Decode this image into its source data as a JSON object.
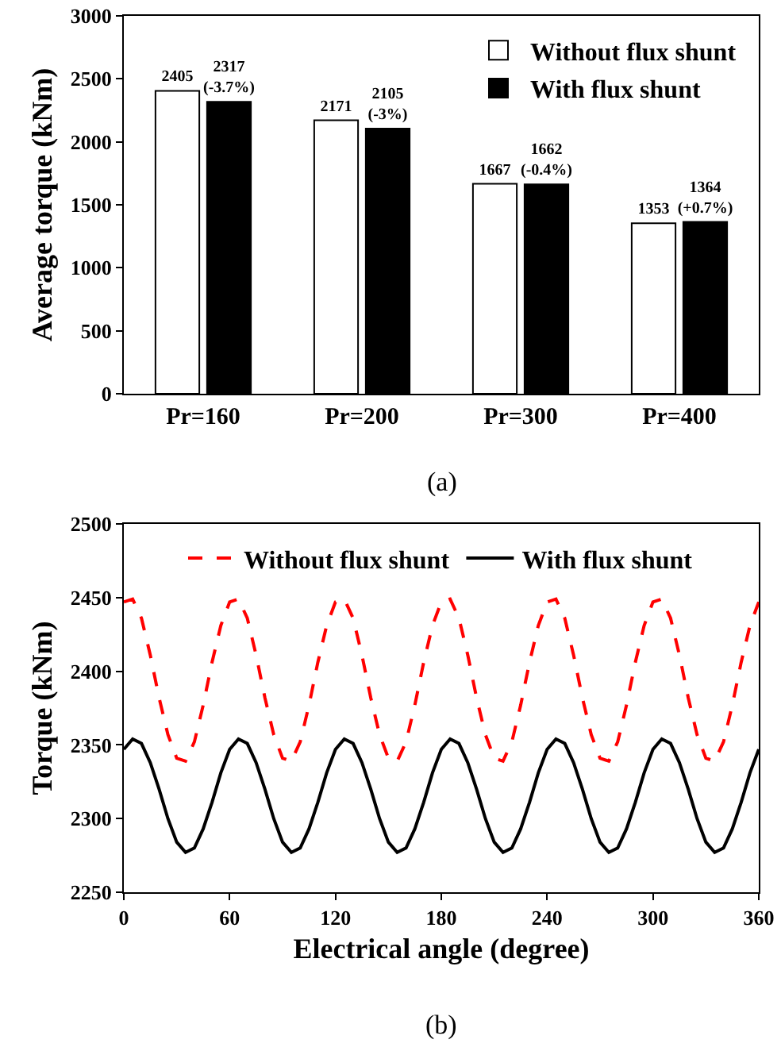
{
  "chart_data": [
    {
      "type": "bar",
      "ylabel": "Average torque (kNm)",
      "categories": [
        "Pr=160",
        "Pr=200",
        "Pr=300",
        "Pr=400"
      ],
      "ylim": [
        0,
        3000
      ],
      "yticks": [
        0,
        500,
        1000,
        1500,
        2000,
        2500,
        3000
      ],
      "grid": false,
      "legend": "top right",
      "annotations": [
        "(a)"
      ],
      "series": [
        {
          "name": "Without flux shunt",
          "color": "#ffffff",
          "values": [
            2405,
            2171,
            1667,
            1353
          ],
          "value_labels": [
            "2405",
            "2171",
            "1667",
            "1353"
          ]
        },
        {
          "name": "With flux shunt",
          "color": "#000000",
          "values": [
            2317,
            2105,
            1662,
            1364
          ],
          "value_labels": [
            "2317\n(-3.7%)",
            "2105\n(-3%)",
            "1662\n(-0.4%)",
            "1364\n(+0.7%)"
          ]
        }
      ]
    },
    {
      "type": "line",
      "xlabel": "Electrical angle (degree)",
      "ylabel": "Torque (kNm)",
      "x": [
        0,
        5,
        10,
        15,
        20,
        25,
        30,
        35,
        40,
        45,
        50,
        55,
        60,
        65,
        70,
        75,
        80,
        85,
        90,
        95,
        100,
        105,
        110,
        115,
        120,
        125,
        130,
        135,
        140,
        145,
        150,
        155,
        160,
        165,
        170,
        175,
        180,
        185,
        190,
        195,
        200,
        205,
        210,
        215,
        220,
        225,
        230,
        235,
        240,
        245,
        250,
        255,
        260,
        265,
        270,
        275,
        280,
        285,
        290,
        295,
        300,
        305,
        310,
        315,
        320,
        325,
        330,
        335,
        340,
        345,
        350,
        355,
        360
      ],
      "xlim": [
        0,
        360
      ],
      "xticks": [
        0,
        60,
        120,
        180,
        240,
        300,
        360
      ],
      "ylim": [
        2250,
        2500
      ],
      "yticks": [
        2250,
        2300,
        2350,
        2400,
        2450,
        2500
      ],
      "grid": false,
      "legend": "top",
      "marker": "none",
      "annotations": [
        "(b)"
      ],
      "series": [
        {
          "name": "Without flux shunt",
          "color": "#ff0000",
          "line_style": "dashed",
          "values": [
            2447,
            2449,
            2436,
            2411,
            2382,
            2357,
            2341,
            2339,
            2352,
            2377,
            2406,
            2431,
            2447,
            2449,
            2436,
            2411,
            2382,
            2357,
            2341,
            2339,
            2352,
            2377,
            2406,
            2431,
            2447,
            2449,
            2436,
            2411,
            2382,
            2357,
            2341,
            2339,
            2352,
            2377,
            2406,
            2431,
            2447,
            2449,
            2436,
            2411,
            2382,
            2357,
            2341,
            2339,
            2352,
            2377,
            2406,
            2431,
            2447,
            2449,
            2436,
            2411,
            2382,
            2357,
            2341,
            2339,
            2352,
            2377,
            2406,
            2431,
            2447,
            2449,
            2436,
            2411,
            2382,
            2357,
            2341,
            2339,
            2352,
            2377,
            2406,
            2431,
            2447
          ]
        },
        {
          "name": "With flux shunt",
          "color": "#000000",
          "line_style": "solid",
          "values": [
            2347,
            2354,
            2351,
            2338,
            2320,
            2300,
            2284,
            2277,
            2280,
            2293,
            2311,
            2331,
            2347,
            2354,
            2351,
            2338,
            2320,
            2300,
            2284,
            2277,
            2280,
            2293,
            2311,
            2331,
            2347,
            2354,
            2351,
            2338,
            2320,
            2300,
            2284,
            2277,
            2280,
            2293,
            2311,
            2331,
            2347,
            2354,
            2351,
            2338,
            2320,
            2300,
            2284,
            2277,
            2280,
            2293,
            2311,
            2331,
            2347,
            2354,
            2351,
            2338,
            2320,
            2300,
            2284,
            2277,
            2280,
            2293,
            2311,
            2331,
            2347,
            2354,
            2351,
            2338,
            2320,
            2300,
            2284,
            2277,
            2280,
            2293,
            2311,
            2331,
            2347
          ]
        }
      ]
    }
  ]
}
